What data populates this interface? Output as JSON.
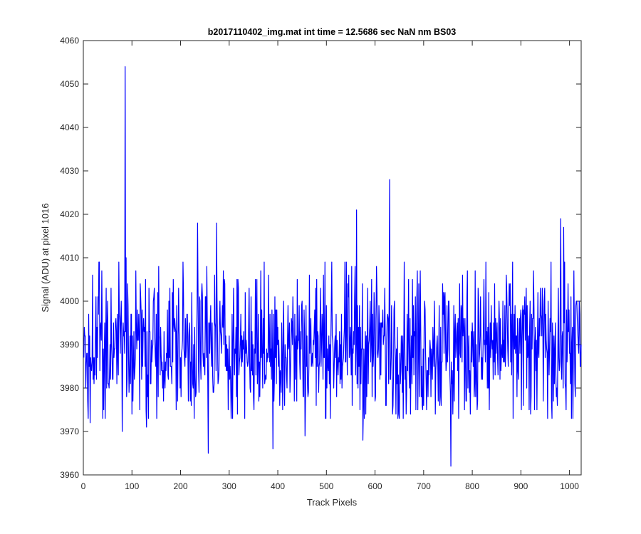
{
  "chart_data": {
    "type": "line",
    "title": "b2017110402_img.mat int time = 12.5686 sec  NaN nm BS03",
    "xlabel": "Track Pixels",
    "ylabel": "Signal (ADU) at pixel 1016",
    "xlim": [
      0,
      1024
    ],
    "ylim": [
      3960,
      4060
    ],
    "xticks": [
      0,
      100,
      200,
      300,
      400,
      500,
      600,
      700,
      800,
      900,
      1000
    ],
    "yticks": [
      3960,
      3970,
      3980,
      3990,
      4000,
      4010,
      4020,
      4030,
      4040,
      4050,
      4060
    ],
    "grid": false,
    "legend": "none",
    "line_color": "#0000ff",
    "series": [
      {
        "n_points": 1024,
        "x_start": 1,
        "baseline": 3990,
        "noise_min": 3975,
        "noise_max": 4005,
        "peaks": [
          {
            "x": 10,
            "y": 3973
          },
          {
            "x": 14,
            "y": 3972
          },
          {
            "x": 32,
            "y": 4009
          },
          {
            "x": 80,
            "y": 3970
          },
          {
            "x": 86,
            "y": 4054
          },
          {
            "x": 88,
            "y": 4010
          },
          {
            "x": 130,
            "y": 3971
          },
          {
            "x": 235,
            "y": 4018
          },
          {
            "x": 257,
            "y": 3965
          },
          {
            "x": 274,
            "y": 4018
          },
          {
            "x": 390,
            "y": 3966
          },
          {
            "x": 456,
            "y": 3969
          },
          {
            "x": 562,
            "y": 4021
          },
          {
            "x": 575,
            "y": 3968
          },
          {
            "x": 630,
            "y": 4028
          },
          {
            "x": 756,
            "y": 3962
          },
          {
            "x": 760,
            "y": 3974
          },
          {
            "x": 835,
            "y": 3975
          },
          {
            "x": 917,
            "y": 3975
          },
          {
            "x": 928,
            "y": 3975
          },
          {
            "x": 982,
            "y": 4019
          },
          {
            "x": 988,
            "y": 4017
          },
          {
            "x": 1012,
            "y": 3978
          }
        ]
      }
    ]
  }
}
